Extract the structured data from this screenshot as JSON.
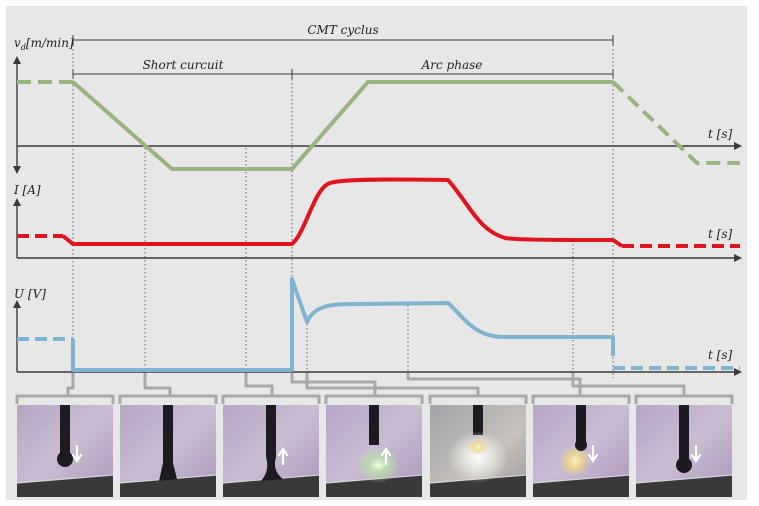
{
  "title": "CMT cyclus",
  "phases": {
    "short_circuit": "Short curcuit",
    "arc": "Arc phase"
  },
  "axes": {
    "wire_speed": {
      "symbol": "v",
      "subscript": "d",
      "unit": "[m/min]"
    },
    "current": {
      "label": "I [A]"
    },
    "voltage": {
      "label": "U [V]"
    },
    "time": {
      "label": "t [s]"
    }
  },
  "colors": {
    "background": "#e7e7e7",
    "wire_speed": "#98b47f",
    "current": "#e0141e",
    "voltage": "#7eb4cf",
    "axis": "#3a3a3a",
    "guide": "#555555",
    "connector": "#a8a8a8"
  },
  "frames": [
    {
      "name": "frame-1",
      "arrow": "down"
    },
    {
      "name": "frame-2",
      "arrow": "none"
    },
    {
      "name": "frame-3",
      "arrow": "up"
    },
    {
      "name": "frame-4",
      "arrow": "up"
    },
    {
      "name": "frame-5",
      "arrow": "none"
    },
    {
      "name": "frame-6",
      "arrow": "down"
    },
    {
      "name": "frame-7",
      "arrow": "down"
    }
  ]
}
